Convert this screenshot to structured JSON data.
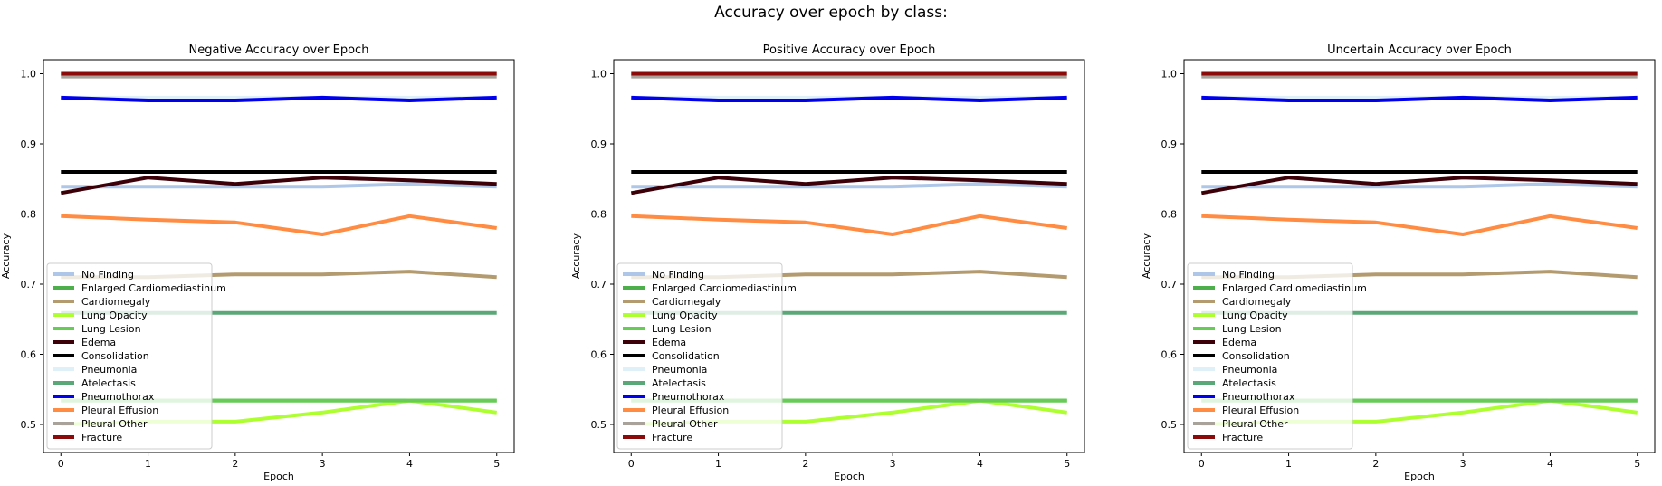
{
  "figure": {
    "suptitle": "Accuracy over epoch by class:"
  },
  "chart_data": [
    {
      "type": "line",
      "title": "Negative Accuracy over Epoch",
      "xlabel": "Epoch",
      "ylabel": "Accuracy",
      "x": [
        0,
        1,
        2,
        3,
        4,
        5
      ],
      "xlim": [
        -0.2,
        5.2
      ],
      "ylim": [
        0.46,
        1.02
      ],
      "xticks": [
        "0",
        "1",
        "2",
        "3",
        "4",
        "5"
      ],
      "yticks": [
        "0.5",
        "0.6",
        "0.7",
        "0.8",
        "0.9",
        "1.0"
      ],
      "grid": false,
      "legend_loc": "lower left",
      "series": [
        {
          "name": "No Finding",
          "color": "#aec7e8",
          "values": [
            0.839,
            0.839,
            0.839,
            0.839,
            0.843,
            0.839
          ]
        },
        {
          "name": "Enlarged Cardiomediastinum",
          "color": "#4daf4a",
          "values": [
            0.534,
            0.534,
            0.534,
            0.534,
            0.534,
            0.534
          ]
        },
        {
          "name": "Cardiomegaly",
          "color": "#b39b6f",
          "values": [
            0.71,
            0.71,
            0.714,
            0.714,
            0.718,
            0.71
          ]
        },
        {
          "name": "Lung Opacity",
          "color": "#adff2f",
          "values": [
            0.5,
            0.504,
            0.504,
            0.517,
            0.534,
            0.517
          ]
        },
        {
          "name": "Lung Lesion",
          "color": "#66cc55",
          "values": [
            0.534,
            0.534,
            0.534,
            0.534,
            0.534,
            0.534
          ]
        },
        {
          "name": "Edema",
          "color": "#3b0008",
          "values": [
            0.83,
            0.852,
            0.843,
            0.852,
            0.848,
            0.843
          ]
        },
        {
          "name": "Consolidation",
          "color": "#000000",
          "values": [
            0.86,
            0.86,
            0.86,
            0.86,
            0.86,
            0.86
          ]
        },
        {
          "name": "Pneumonia",
          "color": "#e0f0f8",
          "values": [
            0.966,
            0.966,
            0.966,
            0.966,
            0.966,
            0.966
          ]
        },
        {
          "name": "Atelectasis",
          "color": "#5aa877",
          "values": [
            0.659,
            0.659,
            0.659,
            0.659,
            0.659,
            0.659
          ]
        },
        {
          "name": "Pneumothorax",
          "color": "#0000ee",
          "values": [
            0.966,
            0.962,
            0.962,
            0.966,
            0.962,
            0.966
          ]
        },
        {
          "name": "Pleural Effusion",
          "color": "#ff8c42",
          "values": [
            0.797,
            0.792,
            0.788,
            0.771,
            0.797,
            0.78
          ]
        },
        {
          "name": "Pleural Other",
          "color": "#a8a29a",
          "values": [
            0.996,
            0.996,
            0.996,
            0.996,
            0.996,
            0.996
          ]
        },
        {
          "name": "Fracture",
          "color": "#8b0a0a",
          "values": [
            1.0,
            1.0,
            1.0,
            1.0,
            1.0,
            1.0
          ]
        }
      ]
    },
    {
      "type": "line",
      "title": "Positive Accuracy over Epoch",
      "xlabel": "Epoch",
      "ylabel": "Accuracy",
      "x": [
        0,
        1,
        2,
        3,
        4,
        5
      ],
      "xlim": [
        -0.2,
        5.2
      ],
      "ylim": [
        0.46,
        1.02
      ],
      "xticks": [
        "0",
        "1",
        "2",
        "3",
        "4",
        "5"
      ],
      "yticks": [
        "0.5",
        "0.6",
        "0.7",
        "0.8",
        "0.9",
        "1.0"
      ],
      "grid": false,
      "legend_loc": "lower left",
      "series": [
        {
          "name": "No Finding",
          "color": "#aec7e8",
          "values": [
            0.839,
            0.839,
            0.839,
            0.839,
            0.843,
            0.839
          ]
        },
        {
          "name": "Enlarged Cardiomediastinum",
          "color": "#4daf4a",
          "values": [
            0.534,
            0.534,
            0.534,
            0.534,
            0.534,
            0.534
          ]
        },
        {
          "name": "Cardiomegaly",
          "color": "#b39b6f",
          "values": [
            0.71,
            0.71,
            0.714,
            0.714,
            0.718,
            0.71
          ]
        },
        {
          "name": "Lung Opacity",
          "color": "#adff2f",
          "values": [
            0.5,
            0.504,
            0.504,
            0.517,
            0.534,
            0.517
          ]
        },
        {
          "name": "Lung Lesion",
          "color": "#66cc55",
          "values": [
            0.534,
            0.534,
            0.534,
            0.534,
            0.534,
            0.534
          ]
        },
        {
          "name": "Edema",
          "color": "#3b0008",
          "values": [
            0.83,
            0.852,
            0.843,
            0.852,
            0.848,
            0.843
          ]
        },
        {
          "name": "Consolidation",
          "color": "#000000",
          "values": [
            0.86,
            0.86,
            0.86,
            0.86,
            0.86,
            0.86
          ]
        },
        {
          "name": "Pneumonia",
          "color": "#e0f0f8",
          "values": [
            0.966,
            0.966,
            0.966,
            0.966,
            0.966,
            0.966
          ]
        },
        {
          "name": "Atelectasis",
          "color": "#5aa877",
          "values": [
            0.659,
            0.659,
            0.659,
            0.659,
            0.659,
            0.659
          ]
        },
        {
          "name": "Pneumothorax",
          "color": "#0000ee",
          "values": [
            0.966,
            0.962,
            0.962,
            0.966,
            0.962,
            0.966
          ]
        },
        {
          "name": "Pleural Effusion",
          "color": "#ff8c42",
          "values": [
            0.797,
            0.792,
            0.788,
            0.771,
            0.797,
            0.78
          ]
        },
        {
          "name": "Pleural Other",
          "color": "#a8a29a",
          "values": [
            0.996,
            0.996,
            0.996,
            0.996,
            0.996,
            0.996
          ]
        },
        {
          "name": "Fracture",
          "color": "#8b0a0a",
          "values": [
            1.0,
            1.0,
            1.0,
            1.0,
            1.0,
            1.0
          ]
        }
      ]
    },
    {
      "type": "line",
      "title": "Uncertain Accuracy over Epoch",
      "xlabel": "Epoch",
      "ylabel": "Accuracy",
      "x": [
        0,
        1,
        2,
        3,
        4,
        5
      ],
      "xlim": [
        -0.2,
        5.2
      ],
      "ylim": [
        0.46,
        1.02
      ],
      "xticks": [
        "0",
        "1",
        "2",
        "3",
        "4",
        "5"
      ],
      "yticks": [
        "0.5",
        "0.6",
        "0.7",
        "0.8",
        "0.9",
        "1.0"
      ],
      "grid": false,
      "legend_loc": "lower left",
      "series": [
        {
          "name": "No Finding",
          "color": "#aec7e8",
          "values": [
            0.839,
            0.839,
            0.839,
            0.839,
            0.843,
            0.839
          ]
        },
        {
          "name": "Enlarged Cardiomediastinum",
          "color": "#4daf4a",
          "values": [
            0.534,
            0.534,
            0.534,
            0.534,
            0.534,
            0.534
          ]
        },
        {
          "name": "Cardiomegaly",
          "color": "#b39b6f",
          "values": [
            0.71,
            0.71,
            0.714,
            0.714,
            0.718,
            0.71
          ]
        },
        {
          "name": "Lung Opacity",
          "color": "#adff2f",
          "values": [
            0.5,
            0.504,
            0.504,
            0.517,
            0.534,
            0.517
          ]
        },
        {
          "name": "Lung Lesion",
          "color": "#66cc55",
          "values": [
            0.534,
            0.534,
            0.534,
            0.534,
            0.534,
            0.534
          ]
        },
        {
          "name": "Edema",
          "color": "#3b0008",
          "values": [
            0.83,
            0.852,
            0.843,
            0.852,
            0.848,
            0.843
          ]
        },
        {
          "name": "Consolidation",
          "color": "#000000",
          "values": [
            0.86,
            0.86,
            0.86,
            0.86,
            0.86,
            0.86
          ]
        },
        {
          "name": "Pneumonia",
          "color": "#e0f0f8",
          "values": [
            0.966,
            0.966,
            0.966,
            0.966,
            0.966,
            0.966
          ]
        },
        {
          "name": "Atelectasis",
          "color": "#5aa877",
          "values": [
            0.659,
            0.659,
            0.659,
            0.659,
            0.659,
            0.659
          ]
        },
        {
          "name": "Pneumothorax",
          "color": "#0000ee",
          "values": [
            0.966,
            0.962,
            0.962,
            0.966,
            0.962,
            0.966
          ]
        },
        {
          "name": "Pleural Effusion",
          "color": "#ff8c42",
          "values": [
            0.797,
            0.792,
            0.788,
            0.771,
            0.797,
            0.78
          ]
        },
        {
          "name": "Pleural Other",
          "color": "#a8a29a",
          "values": [
            0.996,
            0.996,
            0.996,
            0.996,
            0.996,
            0.996
          ]
        },
        {
          "name": "Fracture",
          "color": "#8b0a0a",
          "values": [
            1.0,
            1.0,
            1.0,
            1.0,
            1.0,
            1.0
          ]
        }
      ]
    }
  ]
}
